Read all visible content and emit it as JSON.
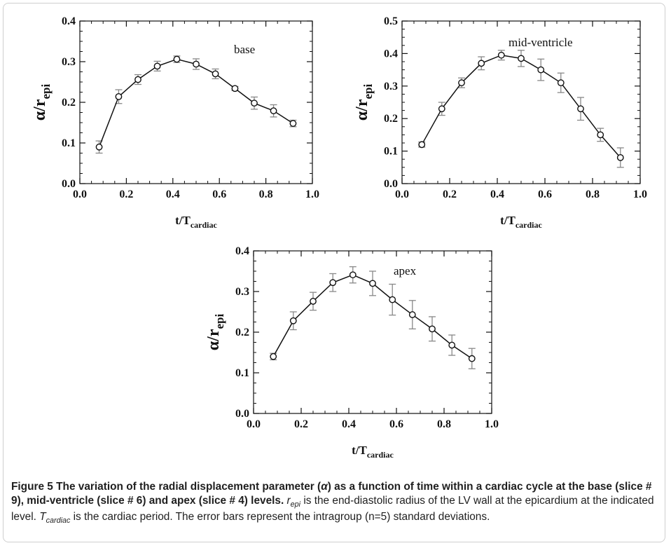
{
  "chart_data": [
    {
      "type": "line",
      "annotation": "base",
      "xlabel_main": "t/T",
      "xlabel_sub": "cardiac",
      "ylabel_main": "α/r",
      "ylabel_sub": "epi",
      "xlim": [
        0.0,
        1.0
      ],
      "ylim": [
        0.0,
        0.4
      ],
      "xticks": [
        "0.0",
        "0.2",
        "0.4",
        "0.6",
        "0.8",
        "1.0"
      ],
      "yticks": [
        "0.0",
        "0.1",
        "0.2",
        "0.3",
        "0.4"
      ],
      "grid": false,
      "x": [
        0.083,
        0.167,
        0.25,
        0.333,
        0.417,
        0.5,
        0.583,
        0.667,
        0.75,
        0.833,
        0.917
      ],
      "y": [
        0.09,
        0.214,
        0.256,
        0.289,
        0.306,
        0.294,
        0.27,
        0.234,
        0.198,
        0.179,
        0.148
      ],
      "err": [
        0.015,
        0.017,
        0.012,
        0.012,
        0.008,
        0.013,
        0.012,
        0.005,
        0.015,
        0.015,
        0.008
      ]
    },
    {
      "type": "line",
      "annotation": "mid-ventricle",
      "xlabel_main": "t/T",
      "xlabel_sub": "cardiac",
      "ylabel_main": "α/r",
      "ylabel_sub": "epi",
      "xlim": [
        0.0,
        1.0
      ],
      "ylim": [
        0.0,
        0.5
      ],
      "xticks": [
        "0.0",
        "0.2",
        "0.4",
        "0.6",
        "0.8",
        "1.0"
      ],
      "yticks": [
        "0.0",
        "0.1",
        "0.2",
        "0.3",
        "0.4",
        "0.5"
      ],
      "grid": false,
      "x": [
        0.083,
        0.167,
        0.25,
        0.333,
        0.417,
        0.5,
        0.583,
        0.667,
        0.75,
        0.833,
        0.917
      ],
      "y": [
        0.12,
        0.23,
        0.31,
        0.37,
        0.395,
        0.385,
        0.35,
        0.31,
        0.23,
        0.15,
        0.08
      ],
      "err": [
        0.008,
        0.02,
        0.015,
        0.02,
        0.015,
        0.025,
        0.033,
        0.03,
        0.035,
        0.02,
        0.03
      ]
    },
    {
      "type": "line",
      "annotation": "apex",
      "xlabel_main": "t/T",
      "xlabel_sub": "cardiac",
      "ylabel_main": "α/r",
      "ylabel_sub": "epi",
      "xlim": [
        0.0,
        1.0
      ],
      "ylim": [
        0.0,
        0.4
      ],
      "xticks": [
        "0.0",
        "0.2",
        "0.4",
        "0.6",
        "0.8",
        "1.0"
      ],
      "yticks": [
        "0.0",
        "0.1",
        "0.2",
        "0.3",
        "0.4"
      ],
      "grid": false,
      "x": [
        0.083,
        0.167,
        0.25,
        0.333,
        0.417,
        0.5,
        0.583,
        0.667,
        0.75,
        0.833,
        0.917
      ],
      "y": [
        0.14,
        0.228,
        0.276,
        0.322,
        0.341,
        0.32,
        0.28,
        0.243,
        0.208,
        0.168,
        0.135
      ],
      "err": [
        0.008,
        0.022,
        0.022,
        0.022,
        0.02,
        0.03,
        0.038,
        0.035,
        0.03,
        0.025,
        0.025
      ]
    }
  ],
  "caption": {
    "figure_label": "Figure 5",
    "title_part1": " The variation of the radial displacement parameter (",
    "title_alpha": "α",
    "title_part2": ") as a function of time within a cardiac cycle at the base (",
    "slice_base": "slice # 9",
    "title_part3": "), mid-ventricle (",
    "slice_mid": "slice # 6",
    "title_part4": ") and apex (",
    "slice_apex": "slice # 4",
    "title_part5": ") levels.",
    "r_main": "r",
    "r_sub": "epi",
    "text1": " is the end-diastolic radius of the LV wall at the epicardium at the indicated level. ",
    "t_main": "T",
    "t_sub": "cardiac",
    "text2": " is the cardiac period. The error bars represent the intragroup (n=5) standard deviations."
  }
}
